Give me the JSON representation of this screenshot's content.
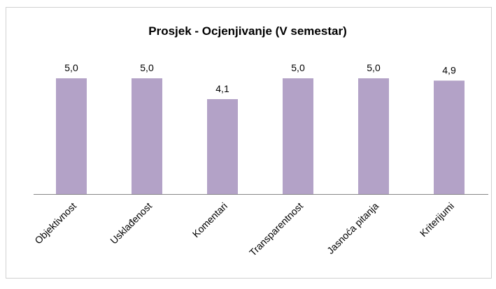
{
  "chart_data": {
    "type": "bar",
    "title": "Prosjek - Ocjenjivanje (V semestar)",
    "categories": [
      "Objektivnost",
      "Usklađenost",
      "Komentari",
      "Transparentnost",
      "Jasnoća pitanja",
      "Kriterijumi"
    ],
    "values": [
      5.0,
      5.0,
      4.1,
      5.0,
      5.0,
      4.9
    ],
    "value_labels": [
      "5,0",
      "5,0",
      "4,1",
      "5,0",
      "5,0",
      "4,9"
    ],
    "color": "#b3a2c7",
    "ylim": [
      0,
      6
    ]
  }
}
